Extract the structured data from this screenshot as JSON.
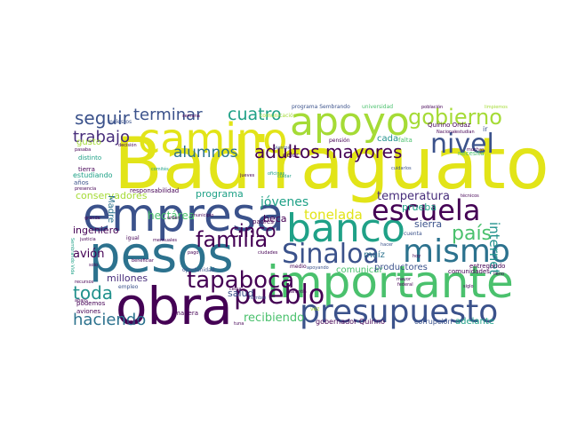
{
  "palette": {
    "yellow": "#e2e418",
    "lime": "#a5db36",
    "green": "#4ac16d",
    "teal": "#1fa187",
    "cyan": "#21918c",
    "blue": "#2c728e",
    "indigo": "#3b528b",
    "purple": "#472d7b",
    "dark": "#440154"
  },
  "words": [
    {
      "text": "Badiraguato",
      "color": "yellow"
    },
    {
      "text": "empresa",
      "color": "indigo"
    },
    {
      "text": "pesos",
      "color": "blue"
    },
    {
      "text": "obra",
      "color": "dark"
    },
    {
      "text": "banco",
      "color": "teal"
    },
    {
      "text": "importante",
      "color": "green"
    },
    {
      "text": "camino",
      "color": "yellow"
    },
    {
      "text": "apoyo",
      "color": "lime"
    },
    {
      "text": "presupuesto",
      "color": "indigo"
    },
    {
      "text": "escuela",
      "color": "dark"
    },
    {
      "text": "Sinaloa",
      "color": "indigo"
    },
    {
      "text": "mismo",
      "color": "blue"
    },
    {
      "text": "nivel",
      "color": "indigo"
    },
    {
      "text": "gobierno",
      "color": "lime"
    },
    {
      "text": "pueblo",
      "color": "dark"
    },
    {
      "text": "tapaboca",
      "color": "dark"
    },
    {
      "text": "familia",
      "color": "dark"
    },
    {
      "text": "adultos mayores",
      "color": "dark"
    },
    {
      "text": "cuatro",
      "color": "teal"
    },
    {
      "text": "terminar",
      "color": "indigo"
    },
    {
      "text": "seguir",
      "color": "indigo"
    },
    {
      "text": "trabajo",
      "color": "purple"
    },
    {
      "text": "alumnos",
      "color": "blue"
    },
    {
      "text": "cinco",
      "color": "dark"
    },
    {
      "text": "tonelada",
      "color": "yellow"
    },
    {
      "text": "jóvenes",
      "color": "teal"
    },
    {
      "text": "país",
      "color": "green"
    },
    {
      "text": "internet",
      "color": "cyan"
    },
    {
      "text": "toda",
      "color": "cyan"
    },
    {
      "text": "haciendo",
      "color": "blue"
    },
    {
      "text": "recibiendo",
      "color": "green"
    },
    {
      "text": "temperatura",
      "color": "purple"
    },
    {
      "text": "conservadores",
      "color": "lime"
    },
    {
      "text": "hectárea",
      "color": "green"
    },
    {
      "text": "programa",
      "color": "teal"
    },
    {
      "text": "ingeniero",
      "color": "dark"
    },
    {
      "text": "avión",
      "color": "dark"
    },
    {
      "text": "Madre",
      "color": "blue"
    },
    {
      "text": "gusto",
      "color": "lime"
    },
    {
      "text": "millones",
      "color": "purple"
    },
    {
      "text": "salud",
      "color": "indigo"
    },
    {
      "text": "beca",
      "color": "dark"
    },
    {
      "text": "prueba",
      "color": "teal"
    },
    {
      "text": "sierra",
      "color": "indigo"
    },
    {
      "text": "maíz",
      "color": "blue"
    },
    {
      "text": "comunicar",
      "color": "green"
    },
    {
      "text": "productores",
      "color": "indigo"
    },
    {
      "text": "cada",
      "color": "cyan"
    },
    {
      "text": "adelante",
      "color": "teal"
    },
    {
      "text": "gobernador Quirino",
      "color": "dark"
    },
    {
      "text": "corrupción",
      "color": "indigo"
    },
    {
      "text": "responsabilidad",
      "color": "dark"
    },
    {
      "text": "estudiando",
      "color": "teal"
    },
    {
      "text": "distinto",
      "color": "teal"
    },
    {
      "text": "años",
      "color": "indigo"
    },
    {
      "text": "comunidades",
      "color": "dark"
    },
    {
      "text": "entregando",
      "color": "dark"
    },
    {
      "text": "necesita",
      "color": "green"
    },
    {
      "text": "falta",
      "color": "green"
    },
    {
      "text": "pensión",
      "color": "dark"
    },
    {
      "text": "Quirino Ordaz",
      "color": "dark"
    },
    {
      "text": "universidad",
      "color": "green"
    },
    {
      "text": "programa Sembrando",
      "color": "indigo"
    },
    {
      "text": "molestos",
      "color": "indigo"
    },
    {
      "text": "dolor",
      "color": "dark"
    },
    {
      "text": "padres",
      "color": "dark"
    },
    {
      "text": "igual",
      "color": "dark"
    },
    {
      "text": "empleo",
      "color": "indigo"
    },
    {
      "text": "podemos",
      "color": "dark"
    },
    {
      "text": "aviones",
      "color": "dark"
    },
    {
      "text": "salir",
      "color": "dark"
    },
    {
      "text": "manera",
      "color": "dark"
    },
    {
      "text": "oportunidad",
      "color": "indigo"
    },
    {
      "text": "medio",
      "color": "dark"
    },
    {
      "text": "semana",
      "color": "dark"
    },
    {
      "text": "cerca",
      "color": "dark"
    },
    {
      "text": "cuenta",
      "color": "indigo"
    },
    {
      "text": "tierra",
      "color": "dark"
    },
    {
      "text": "ir",
      "color": "indigo"
    },
    {
      "text": "oficinas",
      "color": "teal"
    },
    {
      "text": "jueves",
      "color": "dark"
    },
    {
      "text": "vientos",
      "color": "indigo"
    },
    {
      "text": "cuidarlos",
      "color": "indigo"
    },
    {
      "text": "estudian",
      "color": "dark"
    },
    {
      "text": "Nacional",
      "color": "dark"
    },
    {
      "text": "municipio",
      "color": "dark"
    },
    {
      "text": "apoyando",
      "color": "indigo"
    },
    {
      "text": "comités",
      "color": "teal"
    },
    {
      "text": "grande",
      "color": "dark"
    },
    {
      "text": "justicia",
      "color": "dark"
    },
    {
      "text": "presencia",
      "color": "dark"
    },
    {
      "text": "pasaba",
      "color": "dark"
    },
    {
      "text": "decisión",
      "color": "dark"
    },
    {
      "text": "muchas",
      "color": "dark"
    },
    {
      "text": "hoy",
      "color": "dark"
    },
    {
      "text": "Garantía",
      "color": "dark"
    },
    {
      "text": "hacer",
      "color": "indigo"
    },
    {
      "text": "vez",
      "color": "lime"
    },
    {
      "text": "nombre",
      "color": "indigo"
    },
    {
      "text": "tuna",
      "color": "dark"
    },
    {
      "text": "recursos",
      "color": "dark"
    },
    {
      "text": "abajo",
      "color": "dark"
    },
    {
      "text": "Sembrando Vida",
      "color": "teal"
    },
    {
      "text": "pago",
      "color": "dark"
    },
    {
      "text": "orden",
      "color": "dark"
    },
    {
      "text": "mensuales",
      "color": "dark"
    },
    {
      "text": "beneficiar",
      "color": "dark"
    },
    {
      "text": "solo",
      "color": "dark"
    },
    {
      "text": "federal",
      "color": "dark"
    },
    {
      "text": "mayor",
      "color": "dark"
    },
    {
      "text": "siglo",
      "color": "dark"
    },
    {
      "text": "lleno",
      "color": "dark"
    },
    {
      "text": "técnicos",
      "color": "dark"
    },
    {
      "text": "cuidar",
      "color": "teal"
    },
    {
      "text": "ciudades",
      "color": "dark"
    },
    {
      "text": "comunicación",
      "color": "lime"
    },
    {
      "text": "población",
      "color": "dark"
    },
    {
      "text": "limpiemos",
      "color": "lime"
    }
  ]
}
